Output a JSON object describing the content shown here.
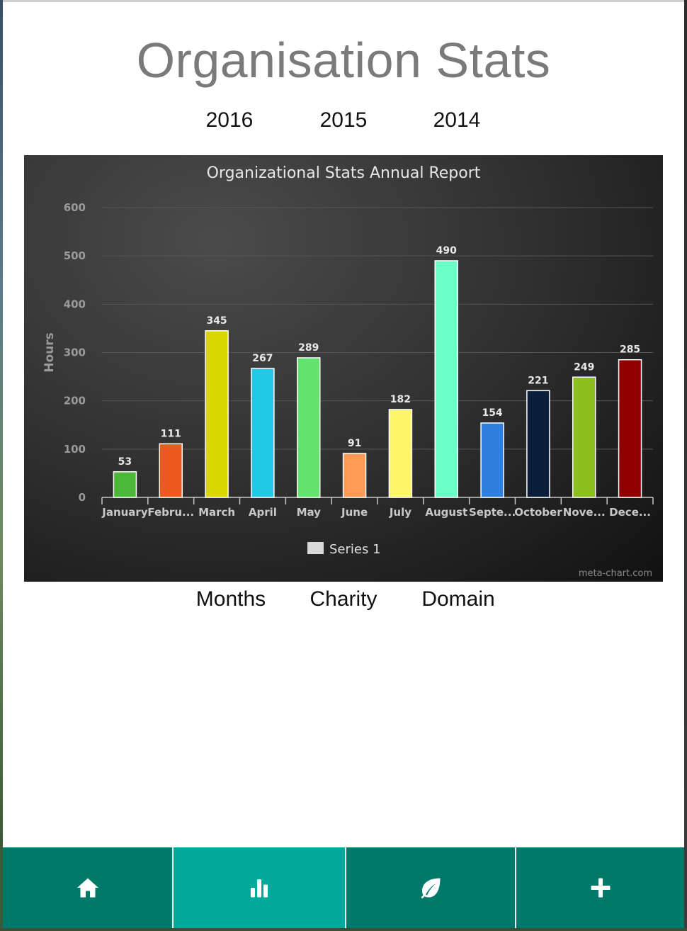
{
  "header": {
    "title": "Organisation Stats"
  },
  "year_tabs": [
    "2016",
    "2015",
    "2014"
  ],
  "category_tabs": [
    "Months",
    "Charity",
    "Domain"
  ],
  "chart_data": {
    "type": "bar",
    "title": "Organizational Stats Annual Report",
    "ylabel": "Hours",
    "xlabel": "",
    "ylim": [
      0,
      600
    ],
    "yticks": [
      0,
      100,
      200,
      300,
      400,
      500,
      600
    ],
    "grid": true,
    "legend_placement": "bottom-center",
    "categories": [
      "January",
      "Febru...",
      "March",
      "April",
      "May",
      "June",
      "July",
      "August",
      "Septe...",
      "October",
      "Nove...",
      "Dece..."
    ],
    "series": [
      {
        "name": "Series 1",
        "values": [
          53,
          111,
          345,
          267,
          289,
          91,
          182,
          490,
          154,
          221,
          249,
          285
        ],
        "colors": [
          "#4cb837",
          "#ee5a1d",
          "#d8d800",
          "#22c8e4",
          "#62e36f",
          "#ff9a55",
          "#fff56a",
          "#6bffc8",
          "#2f7fe0",
          "#0c1f3a",
          "#8ebf20",
          "#8f0000"
        ]
      }
    ],
    "credit": "meta-chart.com",
    "legend_swatch_color": "#d9d9d9"
  },
  "nav": {
    "items": [
      {
        "icon": "home-icon",
        "label": ""
      },
      {
        "icon": "bar-chart-icon",
        "label": ""
      },
      {
        "icon": "leaf-icon",
        "label": ""
      },
      {
        "icon": "plus-icon",
        "label": ""
      }
    ],
    "active_index": 1
  }
}
